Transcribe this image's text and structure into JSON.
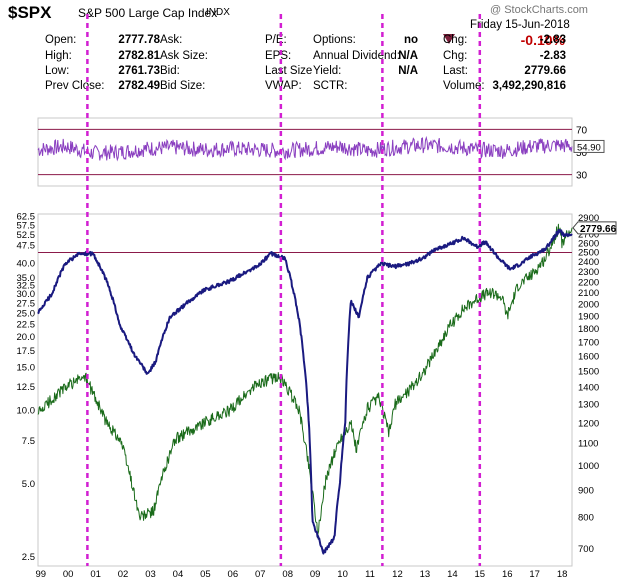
{
  "header": {
    "symbol": "$SPX",
    "name": "S&P 500 Large Cap Index",
    "exchange": "INDX",
    "watermark": "@ StockCharts.com",
    "date": "Friday 15-Jun-2018",
    "change_pct": "-0.10%",
    "rows": [
      [
        {
          "label": "Open:",
          "value": "2777.78"
        },
        {
          "label": "Ask:",
          "value": ""
        },
        {
          "label": "P/E:",
          "value": ""
        },
        {
          "label": "Options:",
          "value": "no"
        },
        {
          "label": "Chg:",
          "value": "-2.83"
        }
      ],
      [
        {
          "label": "High:",
          "value": "2782.81"
        },
        {
          "label": "Ask Size:",
          "value": ""
        },
        {
          "label": "EPS:",
          "value": ""
        },
        {
          "label": "Annual Dividend:",
          "value": "N/A"
        },
        {
          "label": "Chg:",
          "value": "-2.83"
        }
      ],
      [
        {
          "label": "Low:",
          "value": "2761.73"
        },
        {
          "label": "Bid:",
          "value": ""
        },
        {
          "label": "Last Size",
          "value": ""
        },
        {
          "label": "Yield:",
          "value": "N/A"
        },
        {
          "label": "Last:",
          "value": "2779.66"
        }
      ],
      [
        {
          "label": "Prev Close:",
          "value": "2782.49"
        },
        {
          "label": "Bid Size:",
          "value": ""
        },
        {
          "label": "VWAP:",
          "value": ""
        },
        {
          "label": "SCTR:",
          "value": ""
        },
        {
          "label": "Volume:",
          "value": "3,492,290,816"
        }
      ]
    ]
  },
  "colors": {
    "indicator": "#8a3fc0",
    "ratio": "#1a1a80",
    "price": "#1a6b1a",
    "vertical_markers": "#d21fd2",
    "level_lines": "#8b1a4a",
    "change_negative": "#c00000"
  },
  "chart_data": [
    {
      "type": "line",
      "panel": "indicator",
      "name": "",
      "x_range": [
        1999.0,
        2018.46
      ],
      "ylim": [
        20,
        80
      ],
      "tick_labels": [
        "70",
        "50",
        "30"
      ],
      "level_lines": [
        70,
        30
      ],
      "last_value_label": "54.90",
      "x": [
        1999.0,
        2000.0,
        2001.0,
        2002.0,
        2003.0,
        2004.0,
        2005.0,
        2006.0,
        2007.0,
        2008.0,
        2009.0,
        2010.0,
        2011.0,
        2012.0,
        2013.0,
        2014.0,
        2015.0,
        2016.0,
        2017.0,
        2018.0,
        2018.46
      ],
      "values": [
        52,
        55,
        49,
        50,
        53,
        54,
        52,
        53,
        52,
        51,
        53,
        55,
        51,
        54,
        56,
        55,
        52,
        51,
        55,
        56,
        54.9
      ]
    },
    {
      "type": "line",
      "panel": "main",
      "scale": "log",
      "left_axis_ticks": [
        "62.5",
        "57.5",
        "52.5",
        "47.5",
        "40.0",
        "35.0",
        "32.5",
        "30.0",
        "27.5",
        "25.0",
        "22.5",
        "20.0",
        "17.5",
        "15.0",
        "12.5",
        "10.0",
        "7.5",
        "5.0",
        "2.5"
      ],
      "right_axis_ticks": [
        "2900",
        "2700",
        "2600",
        "2500",
        "2400",
        "2300",
        "2200",
        "2100",
        "2000",
        "1900",
        "1800",
        "1700",
        "1600",
        "1500",
        "1400",
        "1300",
        "1200",
        "1100",
        "1000",
        "900",
        "800",
        "700"
      ],
      "x_tick_labels": [
        "99",
        "00",
        "01",
        "02",
        "03",
        "04",
        "05",
        "06",
        "07",
        "08",
        "09",
        "10",
        "11",
        "12",
        "13",
        "14",
        "15",
        "16",
        "17",
        "18"
      ],
      "last_value_label": "2779.66",
      "horizontal_line": 2500,
      "vertical_markers": [
        2000.8,
        2007.85,
        2011.55,
        2015.1
      ],
      "series": [
        {
          "name": "",
          "role": "price",
          "x": [
            1999.0,
            1999.5,
            2000.0,
            2000.7,
            2001.5,
            2002.0,
            2002.7,
            2003.2,
            2003.6,
            2004.0,
            2005.0,
            2006.0,
            2007.0,
            2007.8,
            2008.5,
            2009.0,
            2009.2,
            2009.5,
            2010.0,
            2010.4,
            2010.6,
            2011.0,
            2011.4,
            2011.8,
            2012.0,
            2012.5,
            2013.0,
            2013.5,
            2014.0,
            2014.5,
            2015.0,
            2015.5,
            2015.9,
            2016.1,
            2016.5,
            2017.0,
            2017.5,
            2018.0,
            2018.1,
            2018.3,
            2018.46
          ],
          "values": [
            1250,
            1330,
            1400,
            1470,
            1200,
            1120,
            800,
            820,
            980,
            1120,
            1200,
            1270,
            1420,
            1470,
            1280,
            900,
            740,
            950,
            1120,
            1200,
            1070,
            1280,
            1340,
            1150,
            1300,
            1380,
            1480,
            1640,
            1820,
            1960,
            2050,
            2110,
            2060,
            1900,
            2170,
            2270,
            2440,
            2800,
            2600,
            2700,
            2779.66
          ]
        },
        {
          "name": "",
          "role": "ratio",
          "x": [
            1999.0,
            1999.5,
            2000.0,
            2000.5,
            2001.0,
            2001.5,
            2002.0,
            2002.5,
            2003.0,
            2003.3,
            2003.8,
            2004.5,
            2005.0,
            2006.0,
            2007.0,
            2007.5,
            2008.0,
            2008.5,
            2009.0,
            2009.4,
            2009.8,
            2010.0,
            2010.2,
            2010.4,
            2010.7,
            2011.0,
            2011.5,
            2012.0,
            2012.5,
            2013.0,
            2013.5,
            2014.0,
            2014.5,
            2015.0,
            2015.3,
            2015.8,
            2016.2,
            2016.6,
            2017.0,
            2017.5,
            2018.0,
            2018.2,
            2018.46
          ],
          "values": [
            25,
            30,
            40,
            44,
            44,
            34,
            22,
            17,
            14,
            16,
            24,
            28,
            31,
            34,
            39,
            44,
            42,
            24,
            3.5,
            2.6,
            3.0,
            5,
            9,
            28,
            24,
            35,
            40,
            39,
            40,
            42,
            46,
            48,
            51,
            47,
            49,
            42,
            38,
            40,
            43,
            46,
            55,
            52,
            53
          ]
        }
      ]
    }
  ]
}
